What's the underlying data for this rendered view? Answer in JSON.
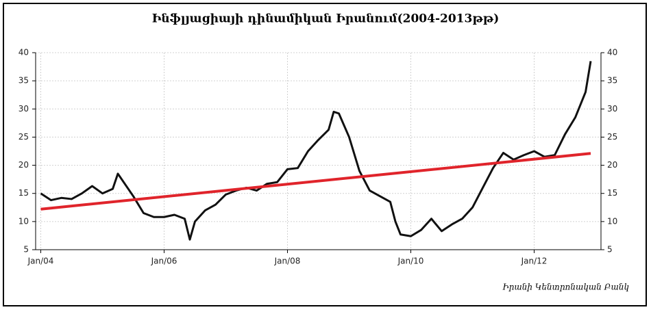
{
  "chart_data": {
    "type": "line",
    "title": "Ինֆլյացիայի դինամիկան Իրանում(2004-2013թթ)",
    "source": "Իրանի Կենտրոնական Բանկ",
    "x": [
      "2004-01",
      "2004-03",
      "2004-05",
      "2004-07",
      "2004-09",
      "2004-11",
      "2005-01",
      "2005-03",
      "2005-04",
      "2005-07",
      "2005-09",
      "2005-11",
      "2006-01",
      "2006-03",
      "2006-05",
      "2006-06",
      "2006-07",
      "2006-09",
      "2006-11",
      "2007-01",
      "2007-03",
      "2007-05",
      "2007-07",
      "2007-09",
      "2007-11",
      "2008-01",
      "2008-03",
      "2008-05",
      "2008-07",
      "2008-09",
      "2008-10",
      "2008-11",
      "2009-01",
      "2009-03",
      "2009-05",
      "2009-07",
      "2009-09",
      "2009-10",
      "2009-11",
      "2010-01",
      "2010-03",
      "2010-05",
      "2010-07",
      "2010-09",
      "2010-11",
      "2011-01",
      "2011-03",
      "2011-05",
      "2011-07",
      "2011-09",
      "2011-11",
      "2012-01",
      "2012-03",
      "2012-05",
      "2012-07",
      "2012-09",
      "2012-11",
      "2012-12"
    ],
    "series": [
      {
        "color": "#111111",
        "values": [
          15.0,
          13.8,
          14.2,
          14.0,
          15.0,
          16.3,
          15.0,
          15.8,
          18.5,
          14.5,
          11.5,
          10.8,
          10.8,
          11.2,
          10.5,
          6.8,
          10.0,
          12.0,
          13.0,
          14.8,
          15.5,
          16.0,
          15.5,
          16.7,
          17.0,
          19.3,
          19.5,
          22.5,
          24.5,
          26.3,
          29.5,
          29.2,
          25.0,
          19.0,
          15.5,
          14.5,
          13.5,
          10.0,
          7.7,
          7.4,
          8.5,
          10.5,
          8.3,
          9.5,
          10.5,
          12.5,
          16.0,
          19.5,
          22.2,
          21.0,
          21.8,
          22.5,
          21.5,
          21.8,
          25.5,
          28.5,
          33.0,
          38.5
        ]
      },
      {
        "color": "#e0242b",
        "x": [
          "2004-01",
          "2012-12"
        ],
        "values": [
          12.2,
          22.1
        ]
      }
    ],
    "xlim": [
      "2003-12",
      "2013-02"
    ],
    "xticks": [
      {
        "value": "2004-01",
        "label": "Jan/04"
      },
      {
        "value": "2006-01",
        "label": "Jan/06"
      },
      {
        "value": "2008-01",
        "label": "Jan/08"
      },
      {
        "value": "2010-01",
        "label": "Jan/10"
      },
      {
        "value": "2012-01",
        "label": "Jan/12"
      }
    ],
    "ylim": [
      5,
      40
    ],
    "yticks": [
      5,
      10,
      15,
      20,
      25,
      30,
      35,
      40
    ],
    "y2lim": [
      5,
      40
    ],
    "y2ticks": [
      5,
      10,
      15,
      20,
      25,
      30,
      35,
      40
    ],
    "grid": true
  }
}
